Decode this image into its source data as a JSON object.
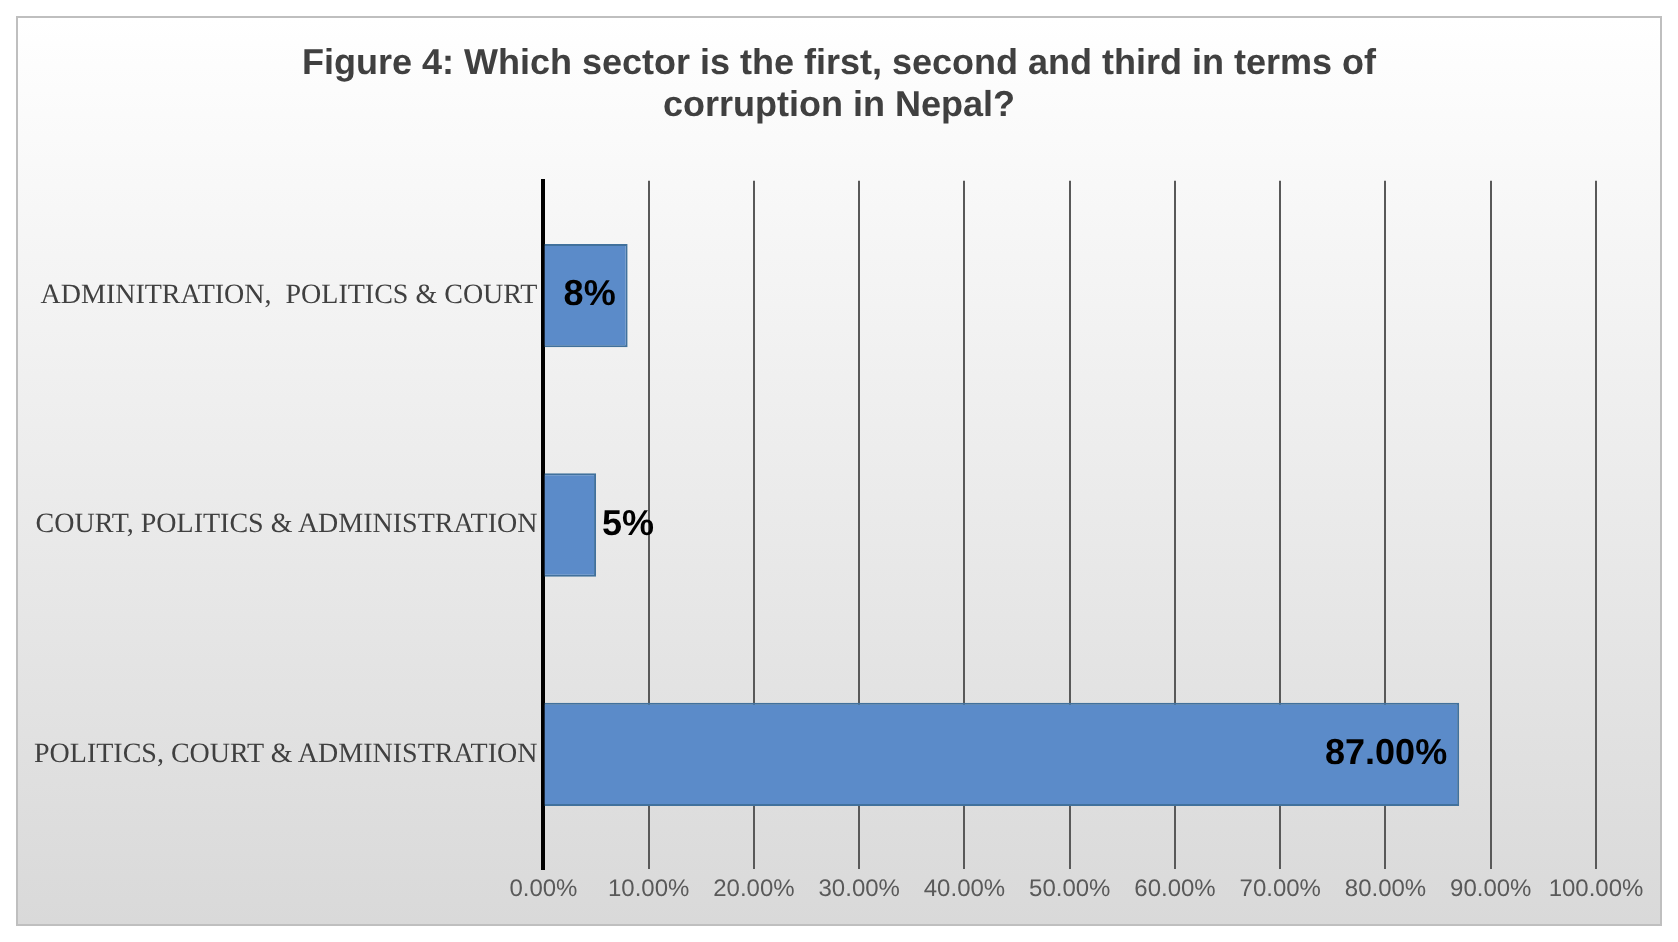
{
  "chart_data": {
    "type": "bar",
    "orientation": "horizontal",
    "title": "Figure 4: Which sector is the first, second and third in terms of corruption in Nepal?",
    "categories": [
      "ADMINITRATION,  POLITICS & COURT",
      "COURT, POLITICS & ADMINISTRATION",
      "POLITICS, COURT & ADMINISTRATION"
    ],
    "values": [
      8,
      5,
      87
    ],
    "value_labels": [
      "8%",
      "5%",
      "87.00%"
    ],
    "color": "#5b8bc9",
    "xlim": [
      0,
      100
    ],
    "xticks": [
      {
        "value": 0,
        "label": "0.00%"
      },
      {
        "value": 10,
        "label": "10.00%"
      },
      {
        "value": 20,
        "label": "20.00%"
      },
      {
        "value": 30,
        "label": "30.00%"
      },
      {
        "value": 40,
        "label": "40.00%"
      },
      {
        "value": 50,
        "label": "50.00%"
      },
      {
        "value": 60,
        "label": "60.00%"
      },
      {
        "value": 70,
        "label": "70.00%"
      },
      {
        "value": 80,
        "label": "80.00%"
      },
      {
        "value": 90,
        "label": "90.00%"
      },
      {
        "value": 100,
        "label": "100.00%"
      }
    ],
    "grid": "x",
    "legend": false
  }
}
